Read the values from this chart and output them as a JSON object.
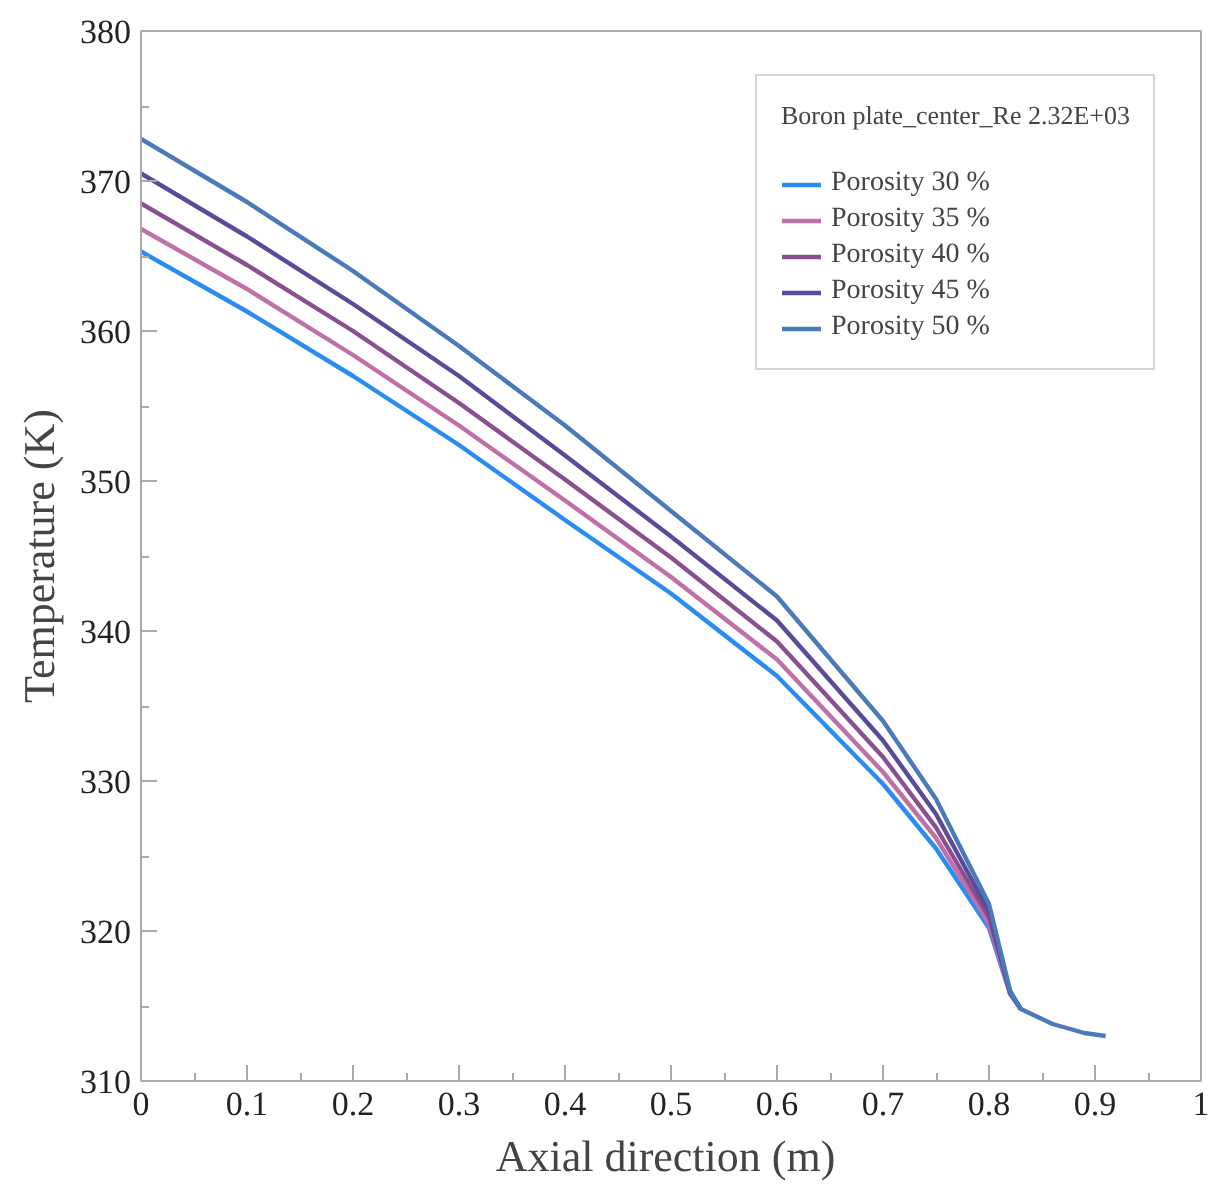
{
  "chart_data": {
    "type": "line",
    "xlabel": "Axial direction  (m)",
    "ylabel": "Temperature (K)",
    "legend_title": "Boron plate_center_Re 2.32E+03",
    "x": [
      0,
      0.1,
      0.2,
      0.3,
      0.4,
      0.5,
      0.6,
      0.7,
      0.75,
      0.8,
      0.82,
      0.83,
      0.86,
      0.89,
      0.91
    ],
    "series": [
      {
        "name": "Porosity 30 %",
        "color": "#2a8cf0",
        "values": [
          365.3,
          361.3,
          357.0,
          352.4,
          347.4,
          342.5,
          337.0,
          329.8,
          325.5,
          320.2,
          315.8,
          314.8,
          null,
          null,
          null
        ]
      },
      {
        "name": "Porosity 35 %",
        "color": "#c070a8",
        "values": [
          366.8,
          362.8,
          358.4,
          353.7,
          348.7,
          343.6,
          338.1,
          330.6,
          326.2,
          320.5,
          315.8,
          314.8,
          null,
          null,
          null
        ]
      },
      {
        "name": "Porosity 40 %",
        "color": "#8a4f90",
        "values": [
          368.5,
          364.4,
          360.0,
          355.2,
          350.1,
          344.9,
          339.3,
          331.6,
          326.9,
          320.9,
          315.9,
          314.8,
          null,
          null,
          null
        ]
      },
      {
        "name": "Porosity 45 %",
        "color": "#5a4a9a",
        "values": [
          370.5,
          366.3,
          361.8,
          357.0,
          351.7,
          346.3,
          340.7,
          332.7,
          327.8,
          321.3,
          315.9,
          314.8,
          null,
          null,
          null
        ]
      },
      {
        "name": "Porosity 50 %",
        "color": "#4a7ab8",
        "values": [
          372.8,
          368.6,
          364.0,
          359.0,
          353.7,
          348.0,
          342.3,
          334.0,
          328.8,
          321.8,
          316.0,
          314.8,
          313.8,
          313.2,
          313.0
        ]
      }
    ],
    "xlim": [
      0,
      1
    ],
    "ylim": [
      310,
      380
    ],
    "xticks": [
      0,
      0.1,
      0.2,
      0.3,
      0.4,
      0.5,
      0.6,
      0.7,
      0.8,
      0.9,
      1
    ],
    "yticks": [
      310,
      320,
      330,
      340,
      350,
      360,
      370,
      380
    ],
    "grid": false,
    "legend": "top right",
    "marker": "none",
    "line_style": "solid"
  }
}
